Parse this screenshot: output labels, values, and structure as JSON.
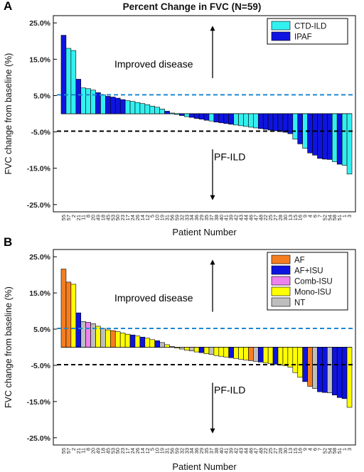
{
  "title": "Percent Change in FVC (N=59)",
  "chart_data": [
    {
      "panel_label": "A",
      "type": "bar",
      "title": "Percent Change in FVC (N=59)",
      "xlabel": "Patient Number",
      "ylabel": "FVC change from baseline (%)",
      "ylim": [
        -27,
        27
      ],
      "yticks": [
        25,
        15,
        5,
        -5,
        -15,
        -25
      ],
      "ytick_labels": [
        "25.0%",
        "15.0%",
        "5.0%",
        "-5.0%",
        "-15.0%",
        "-25.0%"
      ],
      "reference_lines": [
        {
          "y": 5.2,
          "style": "dashed",
          "color": "#1E88D0"
        },
        {
          "y": -4.8,
          "style": "dashed",
          "color": "#000000"
        }
      ],
      "annotations": [
        "Improved disease",
        "PF-ILD"
      ],
      "legend_position": "top-right",
      "series": [
        {
          "name": "CTD-ILD",
          "color": "#33F0F0"
        },
        {
          "name": "IPAF",
          "color": "#0E14E0"
        }
      ],
      "categories": [
        "55",
        "57",
        "2",
        "21",
        "11",
        "8",
        "20",
        "49",
        "18",
        "45",
        "53",
        "50",
        "23",
        "17",
        "24",
        "26",
        "14",
        "12",
        "5",
        "10",
        "19",
        "31",
        "56",
        "59",
        "32",
        "33",
        "34",
        "36",
        "29",
        "35",
        "37",
        "38",
        "40",
        "41",
        "39",
        "42",
        "43",
        "44",
        "46",
        "47",
        "48",
        "22",
        "25",
        "27",
        "28",
        "30",
        "13",
        "15",
        "16",
        "9",
        "4",
        "6",
        "7",
        "52",
        "54",
        "58",
        "51",
        "1",
        "3"
      ],
      "values": [
        21.6,
        18.0,
        17.4,
        9.5,
        7.1,
        6.9,
        6.5,
        5.8,
        5.2,
        4.8,
        4.6,
        4.3,
        3.9,
        3.6,
        3.4,
        3.1,
        2.8,
        2.5,
        2.1,
        1.8,
        1.3,
        0.7,
        0.2,
        -0.2,
        -0.5,
        -0.8,
        -1.0,
        -1.3,
        -1.5,
        -1.8,
        -2.0,
        -2.3,
        -2.5,
        -2.7,
        -2.9,
        -3.1,
        -3.3,
        -3.5,
        -3.7,
        -3.9,
        -4.1,
        -4.3,
        -4.5,
        -4.7,
        -4.9,
        -5.1,
        -5.5,
        -7.0,
        -8.3,
        -9.5,
        -10.8,
        -11.4,
        -12.3,
        -12.5,
        -12.6,
        -13.2,
        -13.9,
        -14.2,
        -16.6
      ],
      "groups": [
        "IPAF",
        "CTD-ILD",
        "CTD-ILD",
        "IPAF",
        "CTD-ILD",
        "CTD-ILD",
        "CTD-ILD",
        "IPAF",
        "CTD-ILD",
        "IPAF",
        "IPAF",
        "IPAF",
        "IPAF",
        "CTD-ILD",
        "CTD-ILD",
        "CTD-ILD",
        "CTD-ILD",
        "CTD-ILD",
        "CTD-ILD",
        "CTD-ILD",
        "CTD-ILD",
        "IPAF",
        "CTD-ILD",
        "CTD-ILD",
        "IPAF",
        "CTD-ILD",
        "IPAF",
        "IPAF",
        "IPAF",
        "IPAF",
        "CTD-ILD",
        "IPAF",
        "IPAF",
        "IPAF",
        "IPAF",
        "CTD-ILD",
        "CTD-ILD",
        "CTD-ILD",
        "CTD-ILD",
        "CTD-ILD",
        "IPAF",
        "IPAF",
        "IPAF",
        "IPAF",
        "IPAF",
        "IPAF",
        "IPAF",
        "CTD-ILD",
        "IPAF",
        "CTD-ILD",
        "IPAF",
        "IPAF",
        "IPAF",
        "IPAF",
        "IPAF",
        "CTD-ILD",
        "IPAF",
        "CTD-ILD",
        "CTD-ILD"
      ]
    },
    {
      "panel_label": "B",
      "type": "bar",
      "title": "",
      "xlabel": "Patient Number",
      "ylabel": "FVC change from baseline (%)",
      "ylim": [
        -27,
        27
      ],
      "yticks": [
        25,
        15,
        5,
        -5,
        -15,
        -25
      ],
      "ytick_labels": [
        "25.0%",
        "15.0%",
        "5.0%",
        "-5.0%",
        "-15.0%",
        "-25.0%"
      ],
      "reference_lines": [
        {
          "y": 5.2,
          "style": "dashed",
          "color": "#1E88D0"
        },
        {
          "y": -4.8,
          "style": "dashed",
          "color": "#000000"
        }
      ],
      "annotations": [
        "Improved disease",
        "PF-ILD"
      ],
      "legend_position": "top-right",
      "series": [
        {
          "name": "AF",
          "color": "#F57E20"
        },
        {
          "name": "AF+ISU",
          "color": "#0E14E0"
        },
        {
          "name": "Comb-ISU",
          "color": "#EE82EE"
        },
        {
          "name": "Mono-ISU",
          "color": "#FFFF00"
        },
        {
          "name": "NT",
          "color": "#BEBEBE"
        }
      ],
      "categories": [
        "55",
        "57",
        "2",
        "21",
        "11",
        "8",
        "20",
        "49",
        "18",
        "45",
        "53",
        "50",
        "23",
        "17",
        "24",
        "26",
        "14",
        "12",
        "5",
        "10",
        "19",
        "31",
        "56",
        "59",
        "32",
        "33",
        "34",
        "36",
        "29",
        "35",
        "37",
        "38",
        "40",
        "41",
        "39",
        "42",
        "43",
        "44",
        "46",
        "47",
        "48",
        "22",
        "25",
        "27",
        "28",
        "30",
        "13",
        "15",
        "16",
        "9",
        "4",
        "6",
        "7",
        "52",
        "54",
        "58",
        "51",
        "1",
        "3"
      ],
      "values": [
        21.6,
        18.0,
        17.4,
        9.5,
        7.1,
        6.9,
        6.5,
        5.8,
        5.2,
        4.8,
        4.6,
        4.3,
        3.9,
        3.6,
        3.4,
        3.1,
        2.8,
        2.5,
        2.1,
        1.8,
        1.3,
        0.7,
        0.2,
        -0.2,
        -0.5,
        -0.8,
        -1.0,
        -1.3,
        -1.5,
        -1.8,
        -2.0,
        -2.3,
        -2.5,
        -2.7,
        -2.9,
        -3.1,
        -3.3,
        -3.5,
        -3.7,
        -3.9,
        -4.1,
        -4.3,
        -4.5,
        -4.7,
        -4.9,
        -5.1,
        -5.5,
        -7.0,
        -8.3,
        -9.5,
        -10.8,
        -11.4,
        -12.3,
        -12.5,
        -12.6,
        -13.2,
        -13.9,
        -14.2,
        -16.6
      ],
      "groups": [
        "AF",
        "AF",
        "Mono-ISU",
        "AF+ISU",
        "NT",
        "Comb-ISU",
        "NT",
        "Mono-ISU",
        "NT",
        "Mono-ISU",
        "AF",
        "Mono-ISU",
        "Mono-ISU",
        "Mono-ISU",
        "AF+ISU",
        "Mono-ISU",
        "AF+ISU",
        "Mono-ISU",
        "Mono-ISU",
        "AF+ISU",
        "NT",
        "Mono-ISU",
        "NT",
        "Mono-ISU",
        "NT",
        "Mono-ISU",
        "NT",
        "Mono-ISU",
        "AF+ISU",
        "Mono-ISU",
        "NT",
        "Mono-ISU",
        "Mono-ISU",
        "Mono-ISU",
        "AF+ISU",
        "Mono-ISU",
        "Mono-ISU",
        "Mono-ISU",
        "AF",
        "NT",
        "AF+ISU",
        "Mono-ISU",
        "Mono-ISU",
        "AF+ISU",
        "Mono-ISU",
        "Mono-ISU",
        "Mono-ISU",
        "Mono-ISU",
        "Mono-ISU",
        "AF+ISU",
        "AF",
        "NT",
        "AF+ISU",
        "AF+ISU",
        "NT",
        "AF+ISU",
        "AF+ISU",
        "AF+ISU",
        "Mono-ISU"
      ]
    }
  ]
}
